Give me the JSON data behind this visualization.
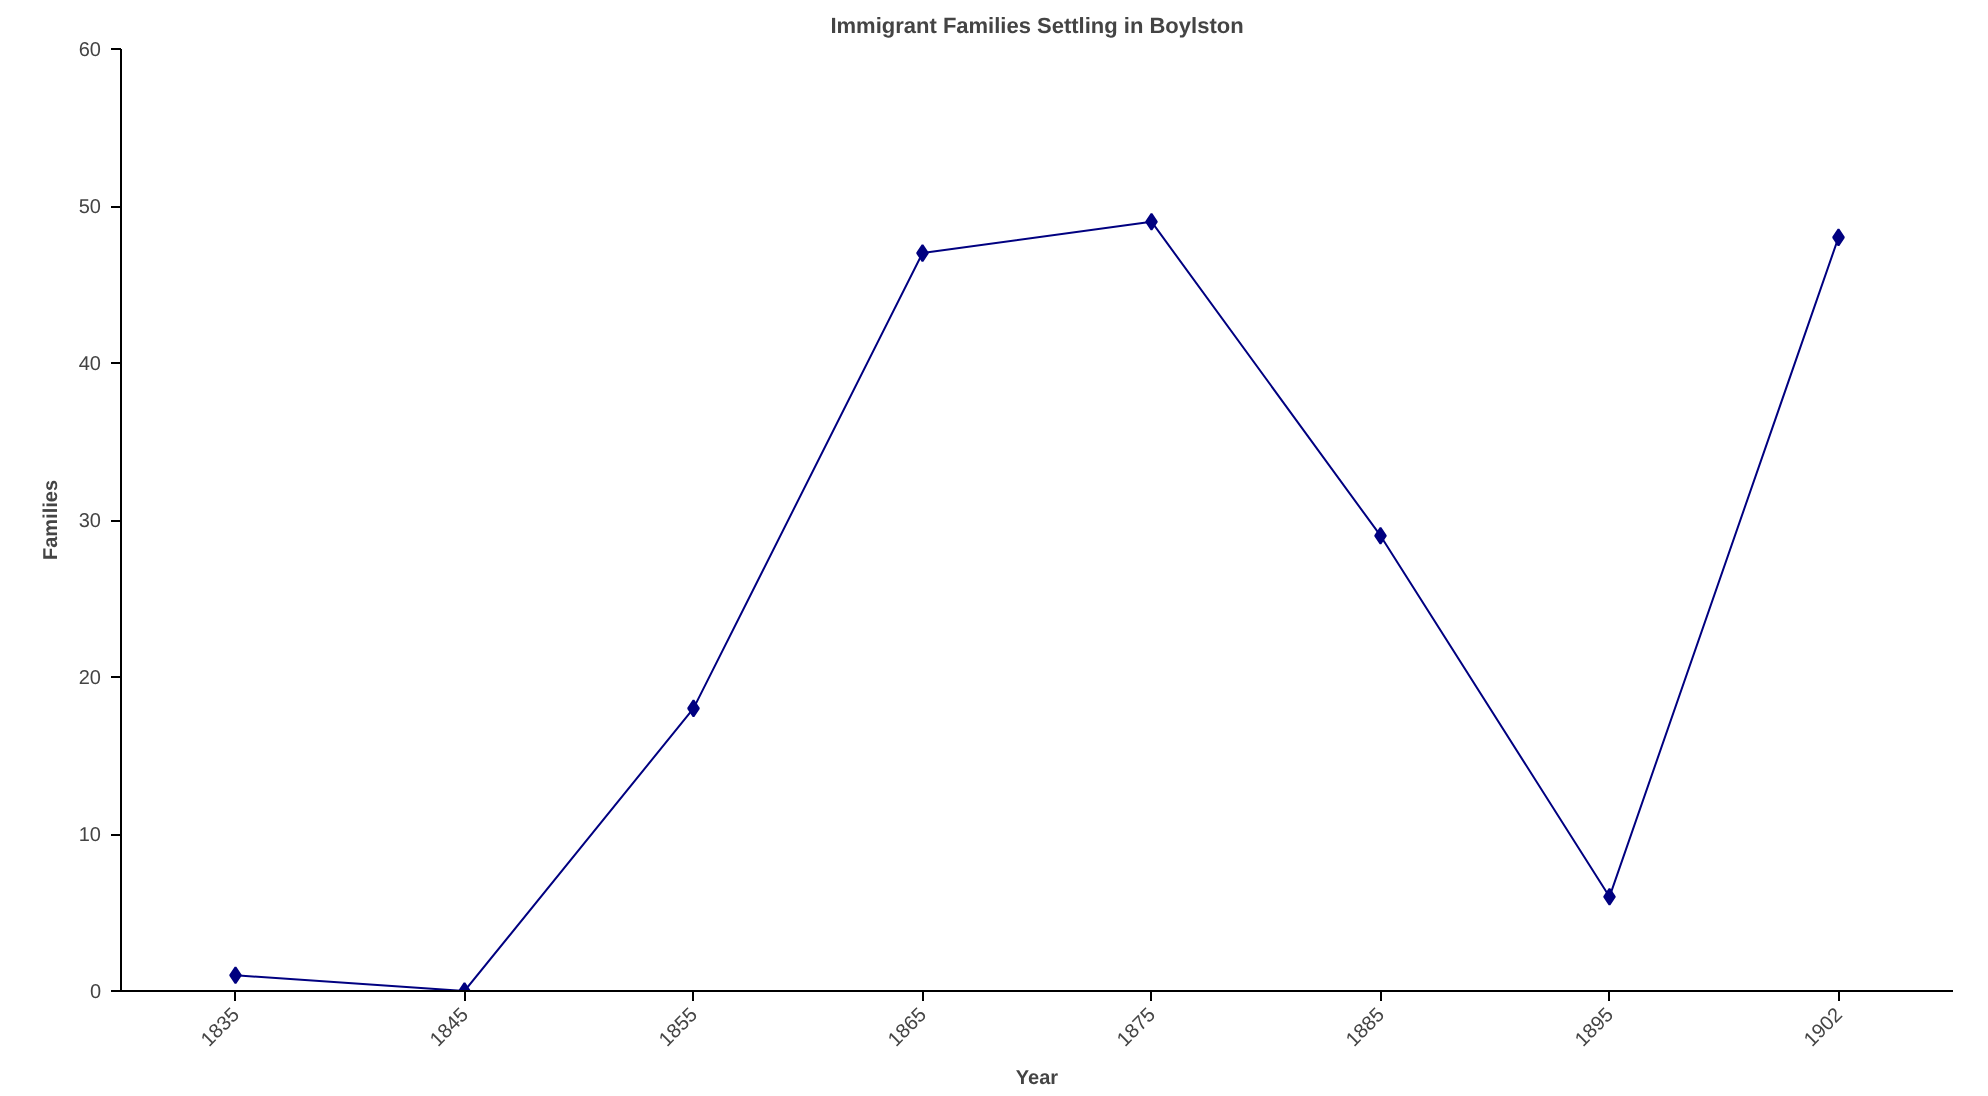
{
  "chart_data": {
    "type": "line",
    "title": "Immigrant Families Settling in Boylston",
    "xlabel": "Year",
    "ylabel": "Families",
    "categories": [
      "1835",
      "1845",
      "1855",
      "1865",
      "1875",
      "1885",
      "1895",
      "1902"
    ],
    "series": [
      {
        "color": "#000080",
        "values": [
          1,
          0,
          18,
          47,
          49,
          29,
          6,
          48
        ]
      }
    ],
    "ylim": [
      0,
      60
    ],
    "yticks": [
      0,
      10,
      20,
      30,
      40,
      50,
      60
    ],
    "grid": false,
    "marker": "diamond",
    "line_style": "solid"
  }
}
